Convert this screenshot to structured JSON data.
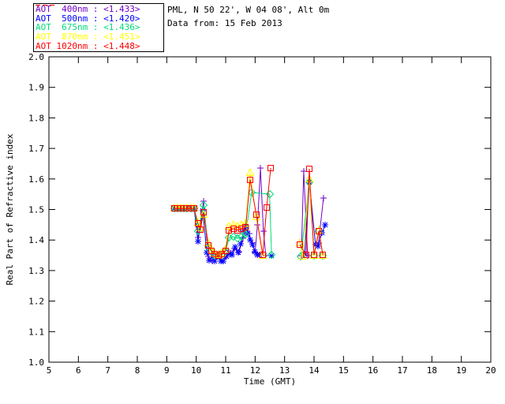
{
  "header": {
    "site_line": "PML, N 50 22', W 04 08', Alt 0m",
    "date_line": "Data from: 15 Feb 2013"
  },
  "chart_data": {
    "type": "line",
    "title": "",
    "xlabel": "Time (GMT)",
    "ylabel": "Real Part of Refractive index",
    "xlim": [
      5,
      20
    ],
    "ylim": [
      1.0,
      2.0
    ],
    "xticks": [
      5,
      6,
      7,
      8,
      9,
      10,
      11,
      12,
      13,
      14,
      15,
      16,
      17,
      18,
      19,
      20
    ],
    "yticks": [
      1.0,
      1.1,
      1.2,
      1.3,
      1.4,
      1.5,
      1.6,
      1.7,
      1.8,
      1.9,
      2.0
    ],
    "grid": false,
    "legend_position": "top-left",
    "series": [
      {
        "id": "400nm",
        "name": "AOT  400nm",
        "legend_value": "<1.433>",
        "color": "#7300C8",
        "marker": "plus",
        "x": [
          9.26,
          9.37,
          9.48,
          9.59,
          9.7,
          9.81,
          9.93,
          10.06,
          10.25,
          10.41,
          10.55,
          10.7,
          10.85,
          11.0,
          11.15,
          11.3,
          11.45,
          11.6,
          11.7,
          11.8,
          11.9,
          12.0,
          12.08,
          12.18,
          12.28,
          12.36,
          null,
          13.57,
          13.65,
          13.78,
          null,
          14.15,
          14.32
        ],
        "y": [
          1.503,
          1.503,
          1.503,
          1.503,
          1.503,
          1.503,
          1.503,
          1.408,
          1.527,
          1.345,
          1.332,
          1.345,
          1.332,
          1.345,
          1.355,
          1.372,
          1.362,
          1.405,
          1.44,
          1.42,
          1.39,
          1.36,
          1.45,
          1.636,
          1.43,
          1.35,
          null,
          1.35,
          1.625,
          1.35,
          null,
          1.39,
          1.537
        ]
      },
      {
        "id": "500nm",
        "name": "AOT  500nm",
        "legend_value": "<1.420>",
        "color": "#0000FF",
        "marker": "asterisk",
        "x": [
          9.26,
          9.37,
          9.48,
          9.59,
          9.7,
          9.81,
          9.93,
          10.06,
          10.22,
          10.36,
          10.45,
          10.55,
          10.63,
          10.73,
          10.83,
          10.93,
          11.03,
          11.12,
          11.22,
          11.32,
          11.42,
          11.52,
          11.62,
          11.68,
          11.76,
          11.84,
          11.92,
          11.99,
          12.06,
          12.14,
          null,
          12.55,
          null,
          13.68,
          13.84,
          14.05,
          14.13,
          14.27,
          14.38
        ],
        "y": [
          1.503,
          1.503,
          1.503,
          1.503,
          1.503,
          1.503,
          1.503,
          1.395,
          1.497,
          1.36,
          1.333,
          1.347,
          1.331,
          1.347,
          1.331,
          1.331,
          1.347,
          1.36,
          1.352,
          1.378,
          1.36,
          1.387,
          1.432,
          1.447,
          1.42,
          1.4,
          1.385,
          1.362,
          1.352,
          1.352,
          null,
          1.35,
          null,
          1.354,
          1.588,
          1.385,
          1.38,
          1.424,
          1.449
        ]
      },
      {
        "id": "675nm",
        "name": "AOT  675nm",
        "legend_value": "<1.436>",
        "color": "#00DC78",
        "marker": "diamond",
        "x": [
          9.26,
          9.37,
          9.48,
          9.59,
          9.7,
          9.81,
          9.93,
          10.06,
          10.25,
          10.41,
          10.52,
          10.63,
          10.76,
          10.87,
          10.99,
          11.12,
          11.26,
          11.4,
          11.54,
          11.68,
          11.88,
          12.49,
          12.56,
          null,
          13.55,
          13.84,
          14.0,
          14.16,
          14.3
        ],
        "y": [
          1.503,
          1.503,
          1.503,
          1.503,
          1.503,
          1.503,
          1.503,
          1.43,
          1.514,
          1.378,
          1.362,
          1.35,
          1.348,
          1.352,
          1.362,
          1.408,
          1.412,
          1.405,
          1.41,
          1.418,
          1.556,
          1.55,
          1.351,
          null,
          1.345,
          1.588,
          1.35,
          1.428,
          1.348
        ]
      },
      {
        "id": "870nm",
        "name": "AOT  870nm",
        "legend_value": "<1.451>",
        "color": "#FFFF00",
        "marker": "triangle",
        "x": [
          9.26,
          9.37,
          9.48,
          9.59,
          9.7,
          9.81,
          9.93,
          10.06,
          10.14,
          10.25,
          10.41,
          10.52,
          10.63,
          10.76,
          10.87,
          10.99,
          11.12,
          11.26,
          11.4,
          11.54,
          11.68,
          11.83,
          12.04,
          12.26,
          null,
          13.52,
          13.62,
          13.84,
          14.0,
          14.16,
          14.3
        ],
        "y": [
          1.503,
          1.503,
          1.503,
          1.503,
          1.503,
          1.503,
          1.503,
          1.458,
          1.44,
          1.483,
          1.39,
          1.368,
          1.357,
          1.352,
          1.357,
          1.37,
          1.445,
          1.45,
          1.445,
          1.45,
          1.455,
          1.62,
          1.475,
          1.348,
          null,
          1.39,
          1.345,
          1.6,
          1.348,
          1.432,
          1.348
        ]
      },
      {
        "id": "1020nm",
        "name": "AOT 1020nm",
        "legend_value": "<1.448>",
        "color": "#FF0000",
        "marker": "square",
        "x": [
          9.26,
          9.37,
          9.48,
          9.59,
          9.7,
          9.81,
          9.93,
          10.05,
          10.14,
          10.25,
          10.41,
          10.52,
          10.63,
          10.76,
          10.87,
          10.99,
          11.12,
          11.26,
          11.4,
          11.54,
          11.68,
          11.83,
          12.04,
          12.26,
          12.39,
          12.53,
          null,
          13.52,
          13.73,
          13.84,
          14.0,
          14.16,
          14.3
        ],
        "y": [
          1.503,
          1.503,
          1.503,
          1.503,
          1.503,
          1.503,
          1.503,
          1.455,
          1.434,
          1.49,
          1.382,
          1.364,
          1.354,
          1.349,
          1.354,
          1.364,
          1.432,
          1.437,
          1.432,
          1.437,
          1.442,
          1.598,
          1.483,
          1.351,
          1.506,
          1.636,
          null,
          1.385,
          1.351,
          1.633,
          1.351,
          1.429,
          1.351
        ]
      }
    ]
  }
}
